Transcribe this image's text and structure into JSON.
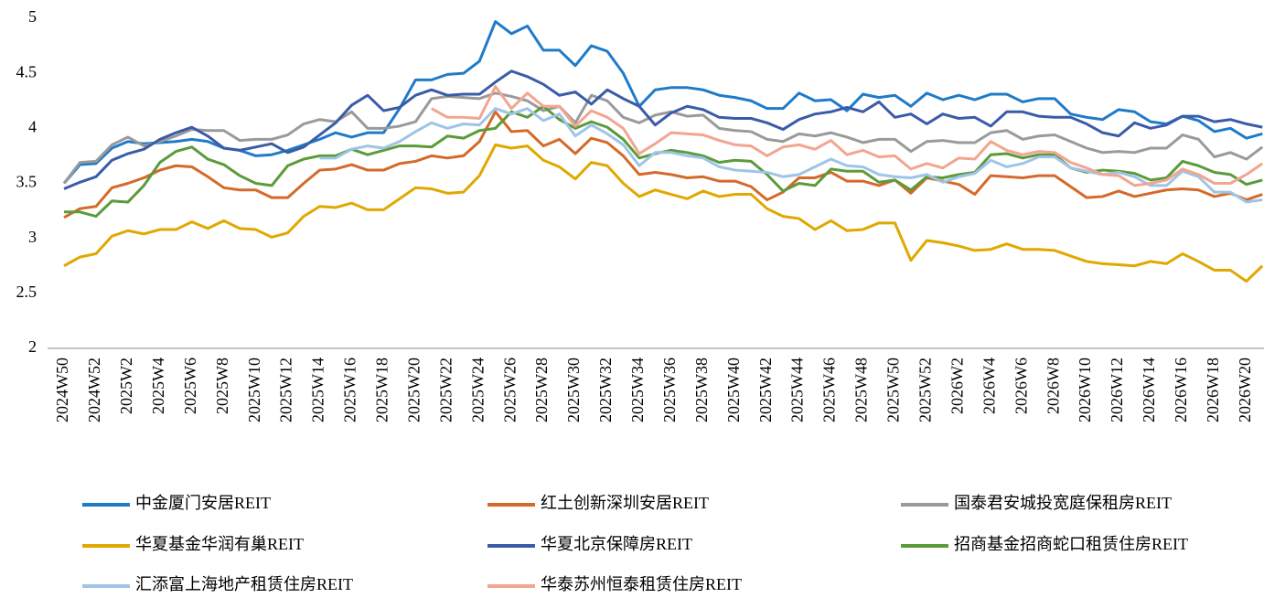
{
  "chart_data": {
    "type": "line",
    "categories": [
      "2024W50",
      null,
      "2024W52",
      null,
      "2025W2",
      null,
      "2025W4",
      null,
      "2025W6",
      null,
      "2025W8",
      null,
      "2025W10",
      null,
      "2025W12",
      null,
      "2025W14",
      null,
      "2025W16",
      null,
      "2025W18",
      null,
      "2025W20",
      null,
      "2025W22",
      null,
      "2025W24",
      null,
      "2025W26",
      null,
      "2025W28",
      null,
      "2025W30",
      null,
      "2025W32",
      null,
      "2025W34",
      null,
      "2025W36",
      null,
      "2025W38",
      null,
      "2025W40",
      null,
      "2025W42",
      null,
      "2025W44",
      null,
      "2025W46",
      null,
      "2025W48",
      null,
      "2025W50",
      null,
      "2025W52",
      null,
      "2026W2",
      null,
      "2026W4",
      null,
      "2026W6",
      null,
      "2026W8",
      null,
      "2026W10",
      null,
      "2026W12",
      null,
      "2026W14",
      null,
      "2026W16",
      null,
      "2026W18",
      null,
      "2026W20",
      null
    ],
    "ylim": [
      2,
      5
    ],
    "yticks": [
      2,
      2.5,
      3,
      3.5,
      4,
      4.5,
      5
    ],
    "grid": false,
    "series": [
      {
        "name": "中金厦门安居REIT",
        "color": "#1f7bc8",
        "values": [
          3.5,
          3.67,
          3.68,
          3.82,
          3.88,
          3.86,
          3.87,
          3.88,
          3.9,
          3.88,
          3.82,
          3.8,
          3.75,
          3.76,
          3.8,
          3.85,
          3.9,
          3.96,
          3.92,
          3.96,
          3.96,
          4.18,
          4.44,
          4.44,
          4.49,
          4.5,
          4.61,
          4.97,
          4.86,
          4.93,
          4.71,
          4.71,
          4.57,
          4.75,
          4.7,
          4.5,
          4.2,
          4.35,
          4.37,
          4.37,
          4.35,
          4.3,
          4.28,
          4.25,
          4.18,
          4.18,
          4.32,
          4.25,
          4.26,
          4.16,
          4.31,
          4.28,
          4.3,
          4.2,
          4.32,
          4.26,
          4.3,
          4.26,
          4.31,
          4.31,
          4.24,
          4.27,
          4.27,
          4.13,
          4.1,
          4.08,
          4.17,
          4.15,
          4.06,
          4.04,
          4.11,
          4.07,
          3.97,
          4.0,
          3.91,
          3.95
        ]
      },
      {
        "name": "红土创新深圳安居REIT",
        "color": "#d46a2a",
        "values": [
          3.19,
          3.27,
          3.29,
          3.46,
          3.5,
          3.55,
          3.62,
          3.66,
          3.65,
          3.56,
          3.46,
          3.44,
          3.44,
          3.37,
          3.37,
          3.5,
          3.62,
          3.63,
          3.67,
          3.62,
          3.62,
          3.68,
          3.7,
          3.75,
          3.73,
          3.75,
          3.88,
          4.15,
          3.97,
          3.98,
          3.84,
          3.9,
          3.77,
          3.91,
          3.87,
          3.75,
          3.58,
          3.6,
          3.58,
          3.55,
          3.56,
          3.52,
          3.52,
          3.47,
          3.35,
          3.42,
          3.55,
          3.55,
          3.6,
          3.52,
          3.52,
          3.48,
          3.53,
          3.41,
          3.55,
          3.52,
          3.49,
          3.4,
          3.57,
          3.56,
          3.55,
          3.57,
          3.57,
          3.47,
          3.37,
          3.38,
          3.43,
          3.38,
          3.41,
          3.44,
          3.45,
          3.44,
          3.38,
          3.41,
          3.35,
          3.4
        ]
      },
      {
        "name": "国泰君安城投宽庭保租房REIT",
        "color": "#9a9a9a",
        "values": [
          3.5,
          3.69,
          3.7,
          3.85,
          3.92,
          3.84,
          3.88,
          3.93,
          3.99,
          3.98,
          3.98,
          3.89,
          3.9,
          3.9,
          3.94,
          4.04,
          4.08,
          4.06,
          4.15,
          4.0,
          4.0,
          4.02,
          4.06,
          4.27,
          4.29,
          4.28,
          4.27,
          4.32,
          4.29,
          4.25,
          4.16,
          4.2,
          4.05,
          4.3,
          4.25,
          4.1,
          4.05,
          4.12,
          4.15,
          4.11,
          4.12,
          4.0,
          3.98,
          3.97,
          3.9,
          3.88,
          3.95,
          3.93,
          3.96,
          3.92,
          3.87,
          3.9,
          3.9,
          3.79,
          3.88,
          3.89,
          3.87,
          3.87,
          3.96,
          3.98,
          3.9,
          3.93,
          3.94,
          3.88,
          3.82,
          3.78,
          3.79,
          3.78,
          3.82,
          3.82,
          3.94,
          3.9,
          3.74,
          3.78,
          3.72,
          3.83
        ]
      },
      {
        "name": "华夏基金华润有巢REIT",
        "color": "#e0a800",
        "values": [
          2.75,
          2.83,
          2.86,
          3.02,
          3.07,
          3.04,
          3.08,
          3.08,
          3.15,
          3.09,
          3.16,
          3.09,
          3.08,
          3.01,
          3.05,
          3.2,
          3.29,
          3.28,
          3.32,
          3.26,
          3.26,
          3.36,
          3.46,
          3.45,
          3.41,
          3.42,
          3.57,
          3.85,
          3.82,
          3.84,
          3.71,
          3.65,
          3.54,
          3.69,
          3.66,
          3.5,
          3.38,
          3.44,
          3.4,
          3.36,
          3.43,
          3.38,
          3.4,
          3.4,
          3.27,
          3.2,
          3.18,
          3.08,
          3.16,
          3.07,
          3.08,
          3.14,
          3.14,
          2.8,
          2.98,
          2.96,
          2.93,
          2.89,
          2.9,
          2.95,
          2.9,
          2.9,
          2.89,
          2.84,
          2.79,
          2.77,
          2.76,
          2.75,
          2.79,
          2.77,
          2.86,
          2.79,
          2.71,
          2.71,
          2.61,
          2.75
        ]
      },
      {
        "name": "华夏北京保障房REIT",
        "color": "#3a5ca8",
        "values": [
          3.45,
          3.51,
          3.56,
          3.71,
          3.77,
          3.81,
          3.9,
          3.96,
          4.01,
          3.93,
          3.82,
          3.8,
          3.83,
          3.86,
          3.78,
          3.83,
          3.94,
          4.05,
          4.21,
          4.3,
          4.16,
          4.19,
          4.3,
          4.35,
          4.3,
          4.31,
          4.31,
          4.42,
          4.52,
          4.47,
          4.4,
          4.3,
          4.33,
          4.22,
          4.35,
          4.27,
          4.2,
          4.03,
          4.14,
          4.2,
          4.17,
          4.1,
          4.09,
          4.09,
          4.05,
          3.99,
          4.08,
          4.13,
          4.15,
          4.19,
          4.15,
          4.24,
          4.1,
          4.13,
          4.04,
          4.13,
          4.09,
          4.1,
          4.02,
          4.15,
          4.15,
          4.11,
          4.1,
          4.1,
          4.04,
          3.96,
          3.93,
          4.05,
          4.0,
          4.03,
          4.11,
          4.11,
          4.06,
          4.08,
          4.04,
          4.01
        ]
      },
      {
        "name": "招商基金招商蛇口租赁住房REIT",
        "color": "#5b9b3a",
        "values": [
          3.24,
          3.24,
          3.2,
          3.34,
          3.33,
          3.48,
          3.69,
          3.79,
          3.83,
          3.72,
          3.67,
          3.57,
          3.5,
          3.48,
          3.66,
          3.72,
          3.75,
          3.75,
          3.81,
          3.76,
          3.8,
          3.84,
          3.84,
          3.83,
          3.93,
          3.91,
          3.98,
          4.0,
          4.15,
          4.1,
          4.2,
          4.08,
          4.0,
          4.06,
          4.01,
          3.9,
          3.73,
          3.77,
          3.8,
          3.78,
          3.75,
          3.69,
          3.71,
          3.7,
          3.58,
          3.43,
          3.5,
          3.48,
          3.63,
          3.61,
          3.61,
          3.51,
          3.53,
          3.44,
          3.56,
          3.55,
          3.58,
          3.6,
          3.76,
          3.77,
          3.73,
          3.76,
          3.76,
          3.64,
          3.6,
          3.62,
          3.61,
          3.59,
          3.53,
          3.55,
          3.7,
          3.66,
          3.6,
          3.58,
          3.49,
          3.53
        ]
      },
      {
        "name": "汇添富上海地产租赁住房REIT",
        "color": "#9ec4e8",
        "values": [
          null,
          null,
          null,
          null,
          null,
          null,
          null,
          null,
          null,
          null,
          null,
          null,
          null,
          null,
          null,
          null,
          3.73,
          3.73,
          3.81,
          3.84,
          3.82,
          3.88,
          3.97,
          4.05,
          4.0,
          4.04,
          4.03,
          4.18,
          4.13,
          4.18,
          4.07,
          4.13,
          3.93,
          4.03,
          3.95,
          3.85,
          3.66,
          3.78,
          3.78,
          3.75,
          3.73,
          3.65,
          3.62,
          3.61,
          3.6,
          3.56,
          3.58,
          3.65,
          3.72,
          3.66,
          3.65,
          3.58,
          3.56,
          3.55,
          3.58,
          3.51,
          3.56,
          3.59,
          3.71,
          3.65,
          3.68,
          3.74,
          3.74,
          3.64,
          3.61,
          3.58,
          3.6,
          3.56,
          3.48,
          3.48,
          3.61,
          3.56,
          3.42,
          3.42,
          3.33,
          3.35
        ]
      },
      {
        "name": "华泰苏州恒泰租赁住房REIT",
        "color": "#f2a590",
        "values": [
          null,
          null,
          null,
          null,
          null,
          null,
          null,
          null,
          null,
          null,
          null,
          null,
          null,
          null,
          null,
          null,
          null,
          null,
          null,
          null,
          null,
          null,
          null,
          4.18,
          4.1,
          4.1,
          4.09,
          4.38,
          4.18,
          4.32,
          4.2,
          4.2,
          4.02,
          4.16,
          4.1,
          4.0,
          3.77,
          3.86,
          3.96,
          3.95,
          3.94,
          3.89,
          3.85,
          3.84,
          3.75,
          3.83,
          3.85,
          3.81,
          3.89,
          3.76,
          3.8,
          3.74,
          3.75,
          3.63,
          3.68,
          3.64,
          3.73,
          3.72,
          3.88,
          3.8,
          3.76,
          3.79,
          3.78,
          3.69,
          3.64,
          3.58,
          3.57,
          3.48,
          3.5,
          3.53,
          3.63,
          3.58,
          3.5,
          3.5,
          3.58,
          3.68
        ]
      }
    ]
  }
}
